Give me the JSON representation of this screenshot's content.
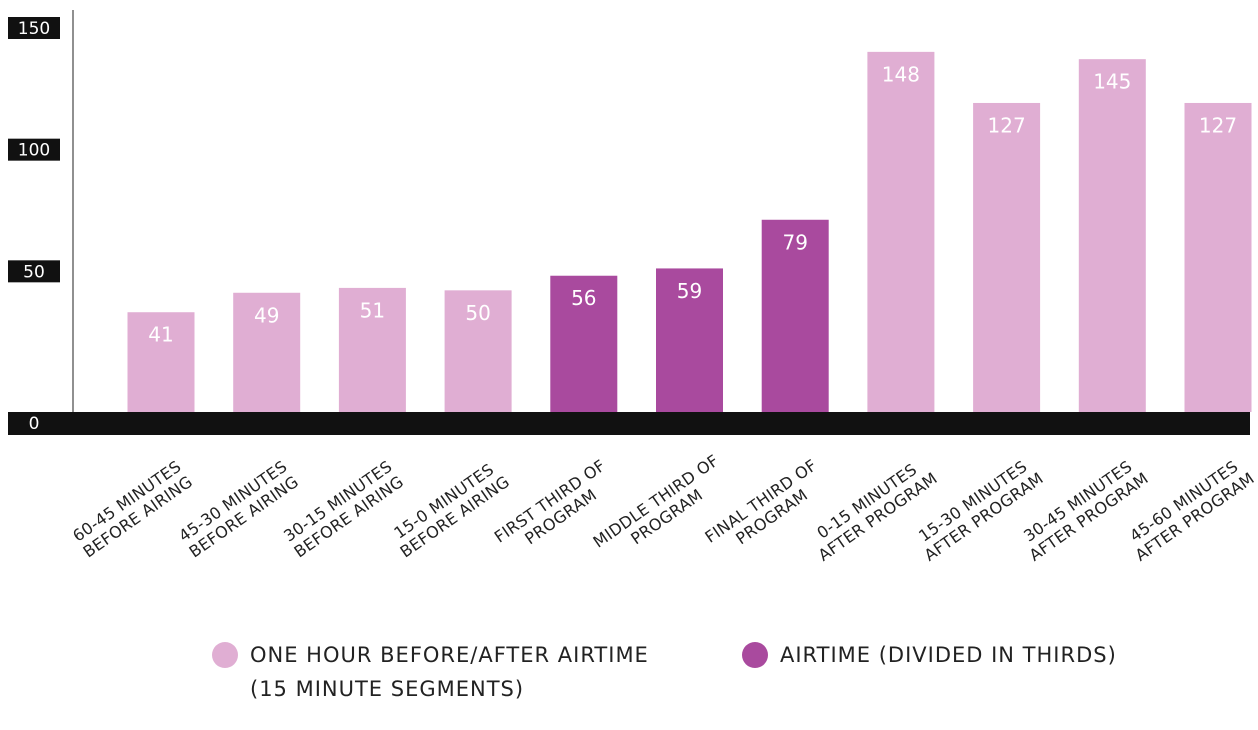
{
  "chart_data": {
    "type": "bar",
    "categories": [
      "60-45 MINUTES BEFORE AIRING",
      "45-30 MINUTES BEFORE AIRING",
      "30-15 MINUTES BEFORE AIRING",
      "15-0 MINUTES BEFORE AIRING",
      "FIRST THIRD OF PROGRAM",
      "MIDDLE THIRD OF PROGRAM",
      "FINAL THIRD OF PROGRAM",
      "0-15 MINUTES AFTER PROGRAM",
      "15-30 MINUTES AFTER PROGRAM",
      "30-45 MINUTES AFTER PROGRAM",
      "45-60 MINUTES AFTER PROGRAM"
    ],
    "series": [
      {
        "name": "ONE HOUR BEFORE/AFTER AIRTIME (15 MINUTE SEGMENTS)",
        "color": "#e0aed3",
        "values": [
          41,
          49,
          51,
          50,
          null,
          null,
          null,
          148,
          127,
          145,
          127
        ]
      },
      {
        "name": "AIRTIME (DIVIDED IN THIRDS)",
        "color": "#a94a9e",
        "values": [
          null,
          null,
          null,
          null,
          56,
          59,
          79,
          null,
          null,
          null,
          null
        ]
      }
    ],
    "ylim": [
      0,
      150
    ],
    "yticks": [
      0,
      50,
      100,
      150
    ]
  }
}
